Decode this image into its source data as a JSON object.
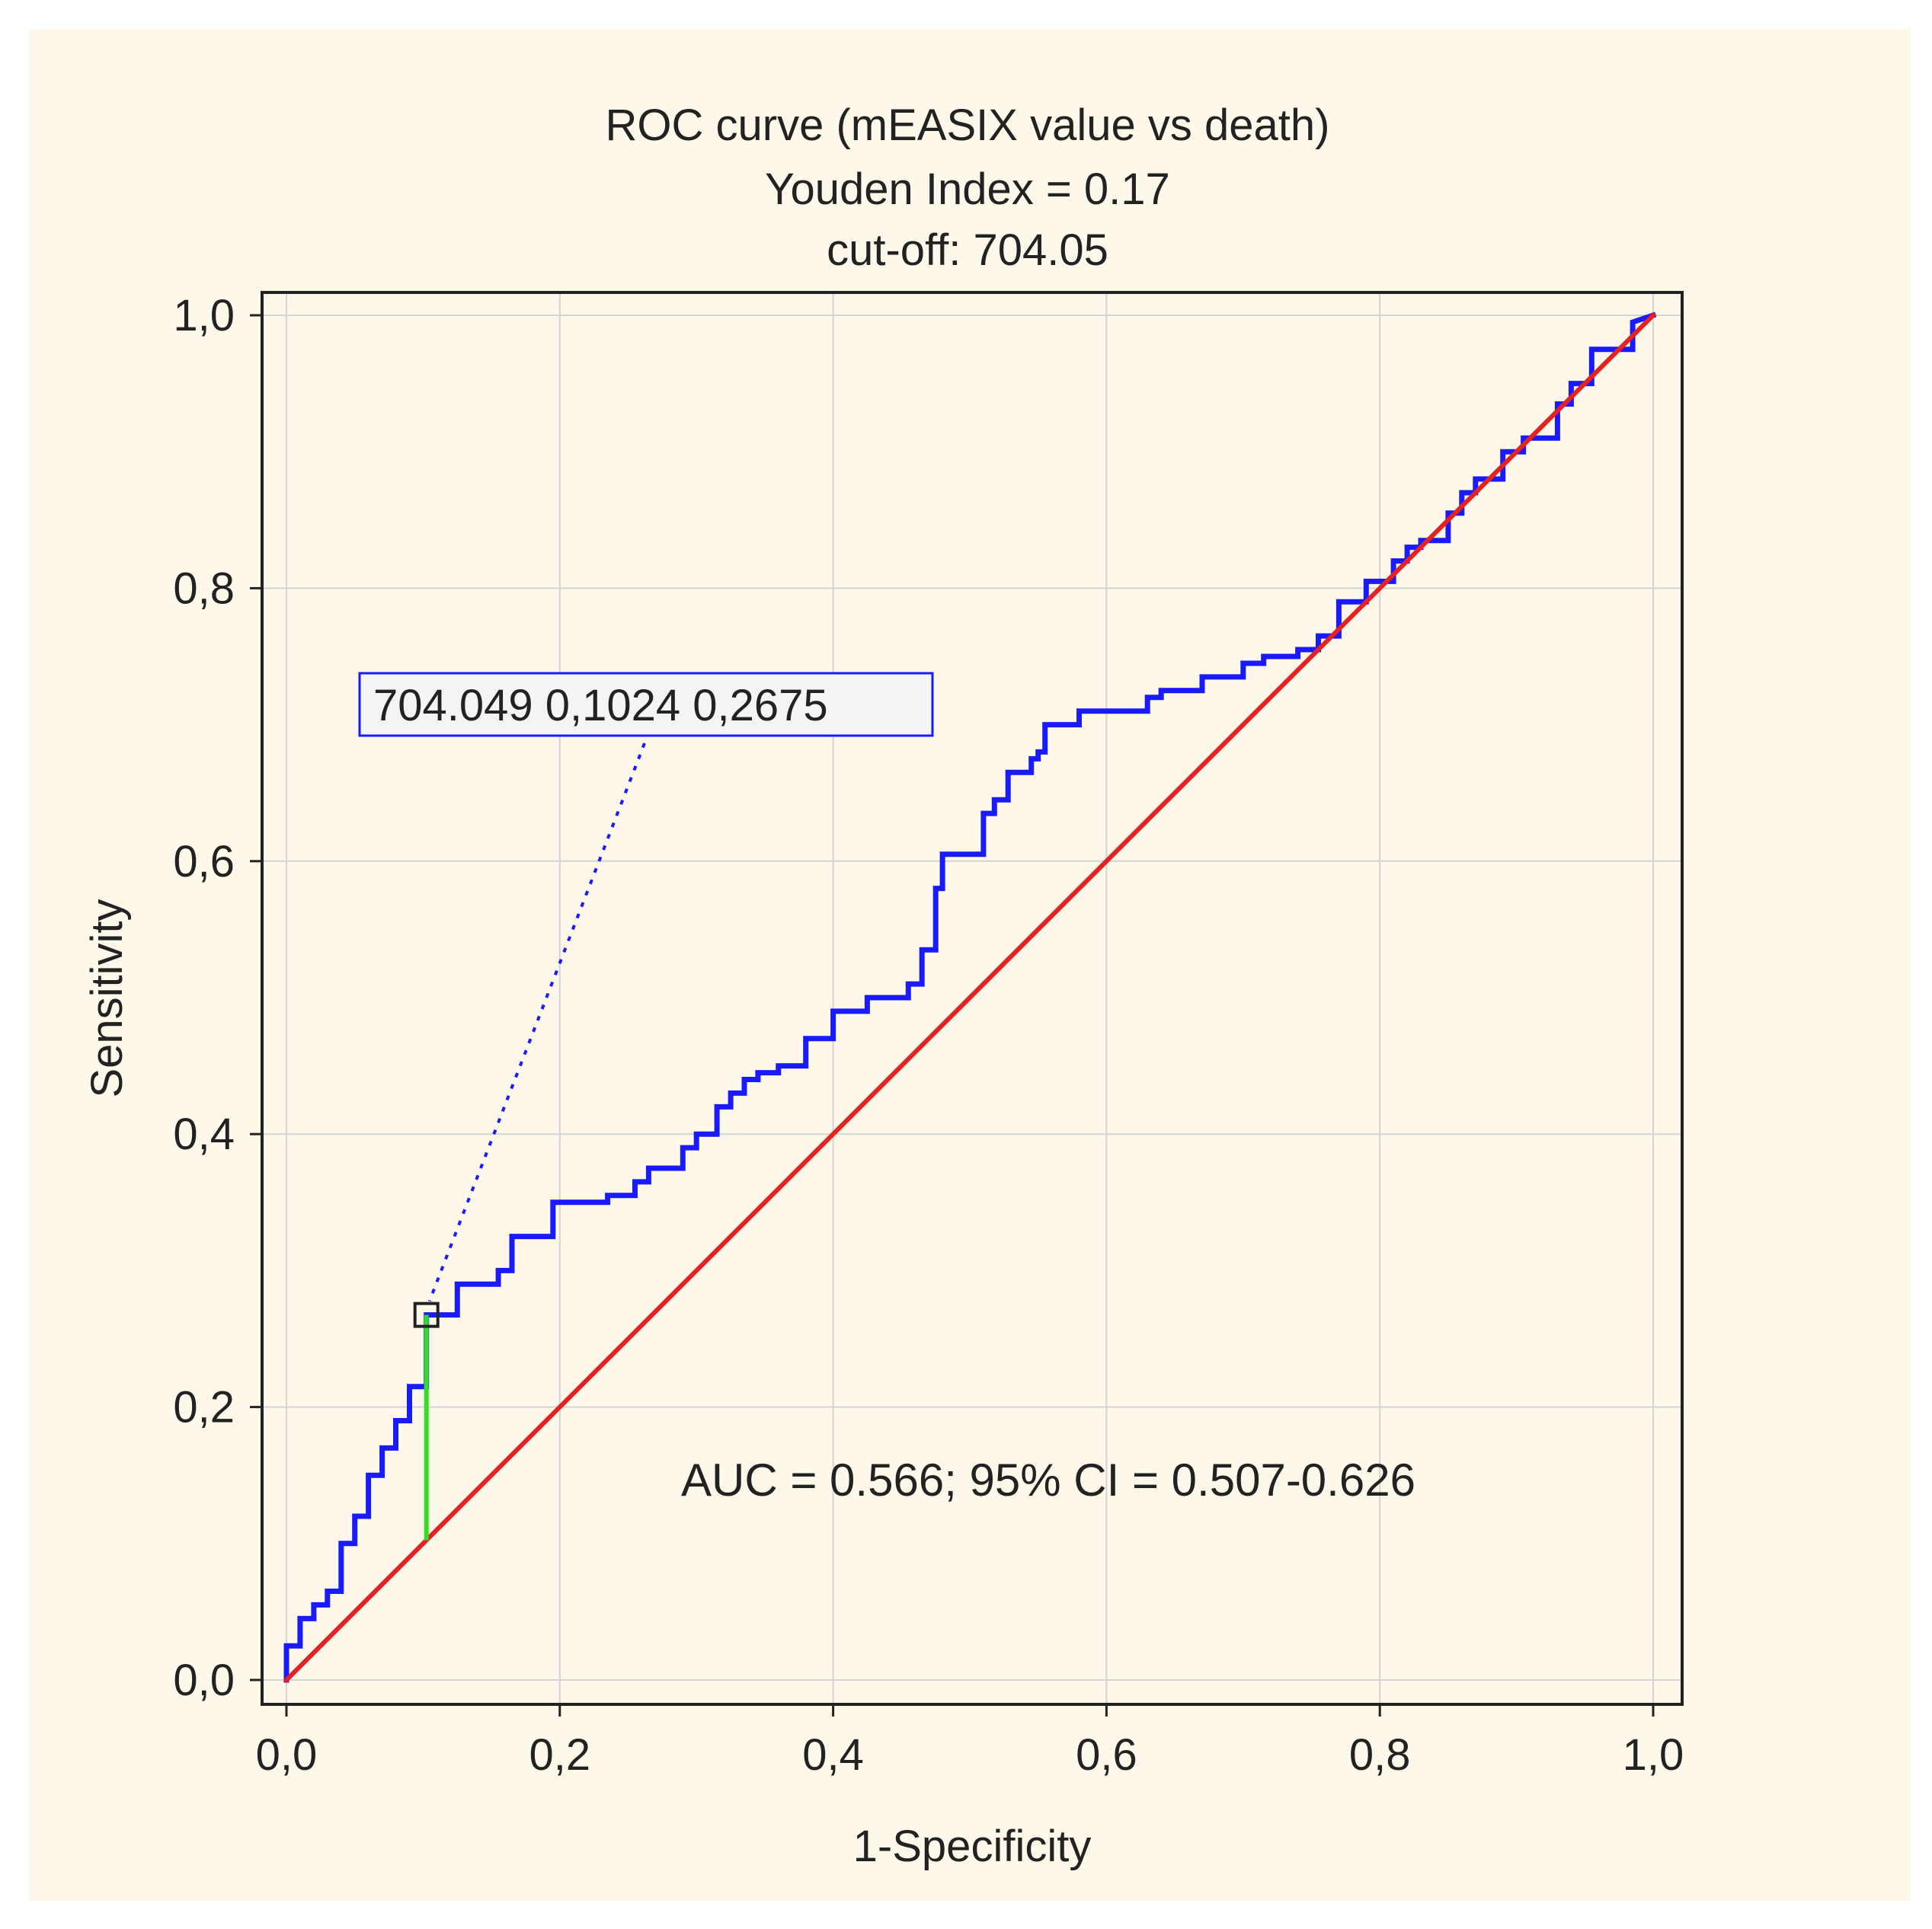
{
  "chart_data": {
    "type": "line",
    "title_lines": [
      "ROC curve (mEASIX value vs death)",
      "Youden Index  = 0.17",
      "cut-off: 704.05"
    ],
    "xlabel": "1-Specificity",
    "ylabel": "Sensitivity",
    "xlim": [
      0,
      1
    ],
    "ylim": [
      0,
      1
    ],
    "xticks": [
      "0,0",
      "0,2",
      "0,4",
      "0,6",
      "0,8",
      "1,0"
    ],
    "yticks": [
      "0,0",
      "0,2",
      "0,4",
      "0,6",
      "0,8",
      "1,0"
    ],
    "grid": true,
    "series": [
      {
        "color": "#1a1aff",
        "x": [
          0,
          0,
          0.01,
          0.01,
          0.02,
          0.02,
          0.03,
          0.03,
          0.04,
          0.04,
          0.05,
          0.05,
          0.06,
          0.06,
          0.07,
          0.07,
          0.08,
          0.08,
          0.09,
          0.09,
          0.1024,
          0.1024,
          0.125,
          0.125,
          0.155,
          0.155,
          0.165,
          0.165,
          0.195,
          0.195,
          0.235,
          0.235,
          0.255,
          0.255,
          0.265,
          0.265,
          0.29,
          0.29,
          0.3,
          0.3,
          0.315,
          0.315,
          0.325,
          0.325,
          0.335,
          0.335,
          0.345,
          0.345,
          0.36,
          0.36,
          0.38,
          0.38,
          0.4,
          0.4,
          0.425,
          0.425,
          0.455,
          0.455,
          0.465,
          0.465,
          0.475,
          0.475,
          0.48,
          0.48,
          0.51,
          0.51,
          0.518,
          0.518,
          0.528,
          0.528,
          0.545,
          0.545,
          0.55,
          0.55,
          0.555,
          0.555,
          0.58,
          0.58,
          0.63,
          0.63,
          0.64,
          0.64,
          0.67,
          0.67,
          0.7,
          0.7,
          0.715,
          0.715,
          0.74,
          0.74,
          0.755,
          0.755,
          0.77,
          0.77,
          0.79,
          0.79,
          0.81,
          0.81,
          0.82,
          0.82,
          0.83,
          0.83,
          0.85,
          0.85,
          0.86,
          0.86,
          0.87,
          0.87,
          0.89,
          0.89,
          0.905,
          0.905,
          0.93,
          0.93,
          0.94,
          0.94,
          0.955,
          0.955,
          0.985,
          0.985,
          1.0
        ],
        "y": [
          0,
          0.025,
          0.025,
          0.045,
          0.045,
          0.055,
          0.055,
          0.065,
          0.065,
          0.1,
          0.1,
          0.12,
          0.12,
          0.15,
          0.15,
          0.17,
          0.17,
          0.19,
          0.19,
          0.215,
          0.215,
          0.2675,
          0.2675,
          0.29,
          0.29,
          0.3,
          0.3,
          0.325,
          0.325,
          0.35,
          0.35,
          0.355,
          0.355,
          0.365,
          0.365,
          0.375,
          0.375,
          0.39,
          0.39,
          0.4,
          0.4,
          0.42,
          0.42,
          0.43,
          0.43,
          0.44,
          0.44,
          0.445,
          0.445,
          0.45,
          0.45,
          0.47,
          0.47,
          0.49,
          0.49,
          0.5,
          0.5,
          0.51,
          0.51,
          0.535,
          0.535,
          0.58,
          0.58,
          0.605,
          0.605,
          0.635,
          0.635,
          0.645,
          0.645,
          0.665,
          0.665,
          0.675,
          0.675,
          0.68,
          0.68,
          0.7,
          0.7,
          0.71,
          0.71,
          0.72,
          0.72,
          0.725,
          0.725,
          0.735,
          0.735,
          0.745,
          0.745,
          0.75,
          0.75,
          0.755,
          0.755,
          0.765,
          0.765,
          0.79,
          0.79,
          0.805,
          0.805,
          0.82,
          0.82,
          0.83,
          0.83,
          0.835,
          0.835,
          0.855,
          0.855,
          0.87,
          0.87,
          0.88,
          0.88,
          0.9,
          0.9,
          0.91,
          0.91,
          0.935,
          0.935,
          0.95,
          0.95,
          0.975,
          0.975,
          0.995,
          1.0
        ]
      },
      {
        "color": "#e52121",
        "x": [
          0,
          1
        ],
        "y": [
          0,
          1
        ]
      }
    ],
    "youden_segment": {
      "x": 0.1024,
      "y_from": 0.1024,
      "y_to": 0.2675,
      "color": "#33dd22"
    },
    "cutoff_point": {
      "x": 0.1024,
      "y": 0.2675
    },
    "callout_label": "704.049 0,1024 0,2675",
    "annotation": "AUC = 0.566; 95% CI = 0.507-0.626"
  }
}
